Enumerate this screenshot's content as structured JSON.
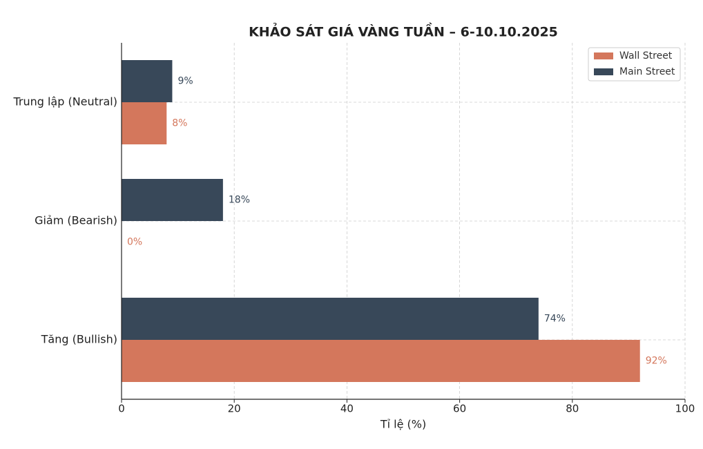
{
  "chart_data": {
    "type": "barh",
    "title": "KHẢO SÁT GIÁ VÀNG TUẦN – 6-10.10.2025",
    "x_label": "Tỉ lệ (%)",
    "categories": [
      "Trung lập (Neutral)",
      "Giảm (Bearish)",
      "Tăng (Bullish)"
    ],
    "series": [
      {
        "name": "Wall Street",
        "color": "#d4775c",
        "values": [
          8,
          0,
          92
        ],
        "value_labels": [
          "8%",
          "0%",
          "92%"
        ]
      },
      {
        "name": "Main Street",
        "color": "#384859",
        "values": [
          9,
          18,
          74
        ],
        "value_labels": [
          "9%",
          "18%",
          "74%"
        ]
      }
    ],
    "xlim": [
      0,
      100
    ],
    "xticks": [
      0,
      20,
      40,
      60,
      80,
      100
    ],
    "grid": true,
    "legend": "upper right"
  }
}
